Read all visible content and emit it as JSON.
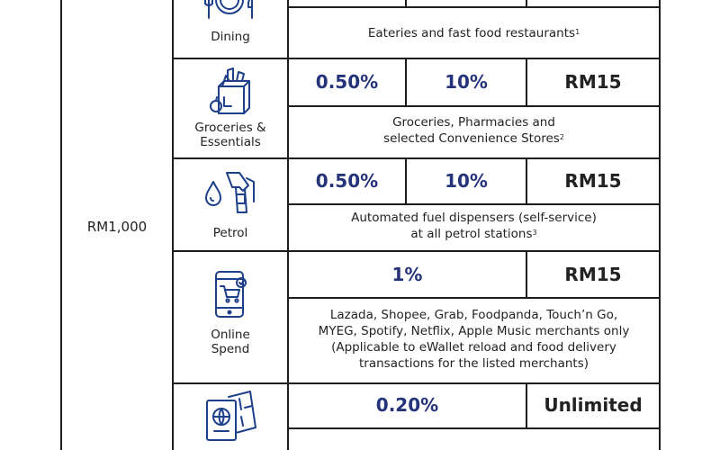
{
  "spend_threshold": "RM1,000",
  "rows": [
    {
      "category": "Dining",
      "description": "Eateries and fast food restaurants",
      "footnote": "1"
    },
    {
      "category_line1": "Groceries &",
      "category_line2": "Essentials",
      "rate_a": "0.50%",
      "rate_b": "10%",
      "cap": "RM15",
      "description_line1": "Groceries, Pharmacies and",
      "description_line2": "selected Convenience Stores",
      "footnote": "2"
    },
    {
      "category": "Petrol",
      "rate_a": "0.50%",
      "rate_b": "10%",
      "cap": "RM15",
      "description_line1": "Automated fuel dispensers (self-service)",
      "description_line2": "at all petrol stations",
      "footnote": "3"
    },
    {
      "category_line1": "Online",
      "category_line2": "Spend",
      "rate": "1%",
      "cap": "RM15",
      "description_lines": [
        "Lazada, Shopee, Grab, Foodpanda, Touch’n Go,",
        "MYEG, Spotify, Netflix, Apple Music merchants only",
        "(Applicable to eWallet reload and food delivery",
        "transactions for the listed merchants)"
      ]
    },
    {
      "rate": "0.20%",
      "cap": "Unlimited"
    }
  ],
  "icons": [
    "dining-plate-icon",
    "grocery-bag-icon",
    "fuel-pump-icon",
    "mobile-shopping-cart-icon",
    "passport-ticket-icon"
  ],
  "colors": {
    "rate_text": "#25337a",
    "icon_stroke": "#1e3f8a",
    "border": "#1c1c1c"
  }
}
